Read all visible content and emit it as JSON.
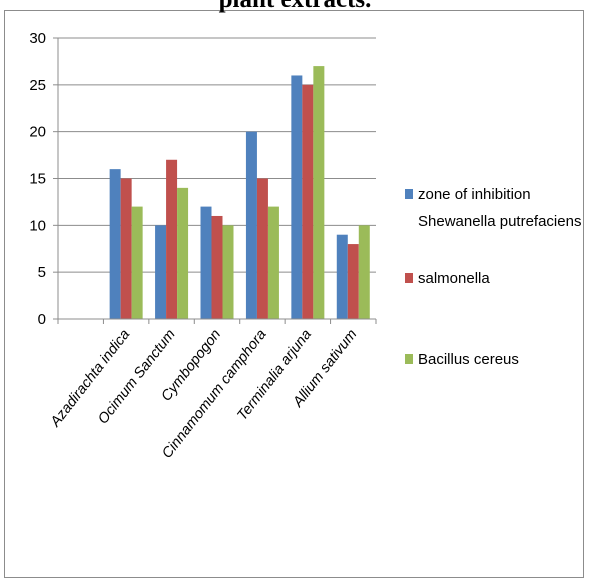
{
  "chart_data": {
    "type": "bar",
    "title": "plant extracts.",
    "categories": [
      "",
      "Azadirachta indica",
      "Ocimum Sanctum",
      "Cymbopogon",
      "Cinnamomum camphora",
      "Terminalia arjuna",
      "Allium sativum"
    ],
    "series": [
      {
        "name": "zone of inhibition Shewanella putrefaciens",
        "legend_lines": [
          "zone of inhibition",
          "Shewanella putrefaciens"
        ],
        "color": "#4f81bd",
        "values": [
          null,
          16,
          10,
          12,
          20,
          26,
          9
        ]
      },
      {
        "name": "salmonella",
        "legend_lines": [
          "salmonella"
        ],
        "color": "#c0504d",
        "values": [
          null,
          15,
          17,
          11,
          15,
          25,
          8
        ]
      },
      {
        "name": "Bacillus cereus",
        "legend_lines": [
          "Bacillus cereus"
        ],
        "color": "#9bbb59",
        "values": [
          null,
          12,
          14,
          10,
          12,
          27,
          10
        ]
      }
    ],
    "yticks": [
      0,
      5,
      10,
      15,
      20,
      25,
      30
    ],
    "ylim": [
      0,
      30
    ],
    "grid": true,
    "legend": "right"
  }
}
